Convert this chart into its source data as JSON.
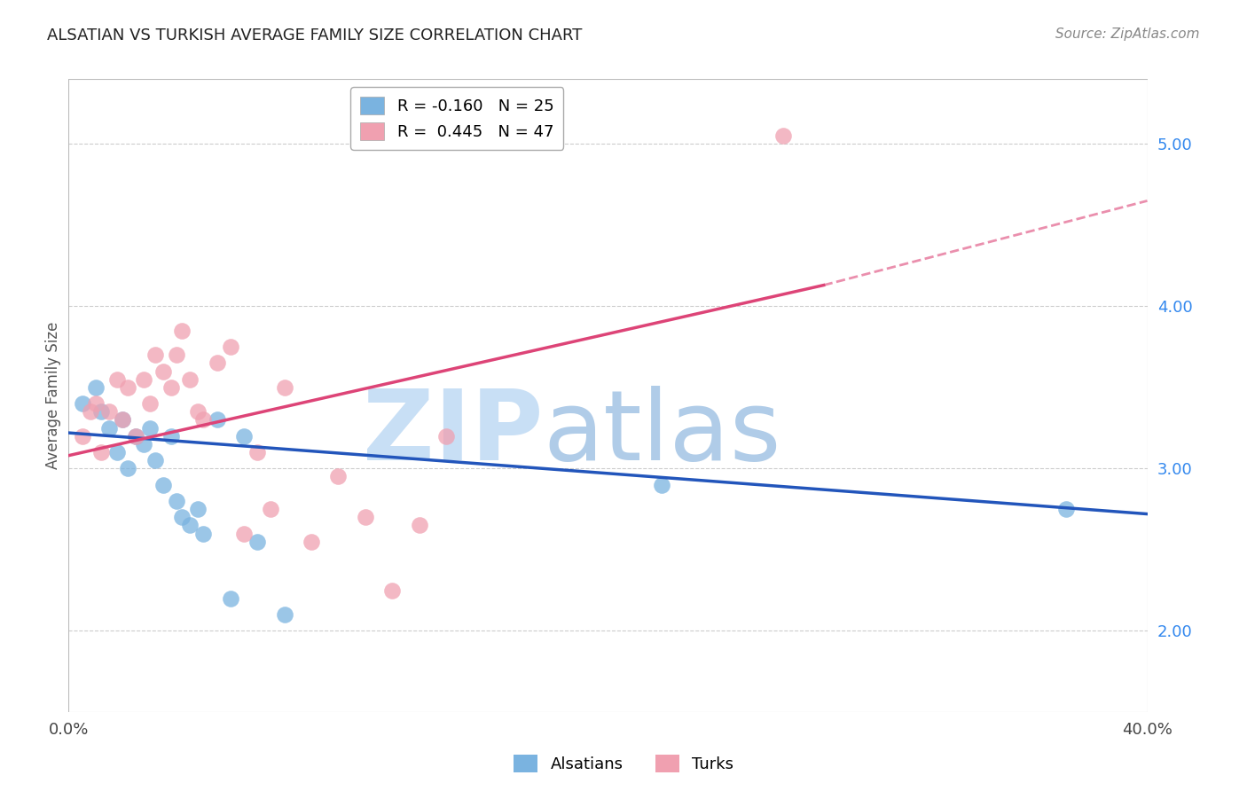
{
  "title": "ALSATIAN VS TURKISH AVERAGE FAMILY SIZE CORRELATION CHART",
  "source": "Source: ZipAtlas.com",
  "ylabel": "Average Family Size",
  "right_yticks": [
    2.0,
    3.0,
    4.0,
    5.0
  ],
  "alsatians_x": [
    0.5,
    1.0,
    1.2,
    1.5,
    1.8,
    2.0,
    2.2,
    2.5,
    2.8,
    3.0,
    3.2,
    3.5,
    3.8,
    4.0,
    4.2,
    4.5,
    4.8,
    5.0,
    5.5,
    6.0,
    6.5,
    7.0,
    8.0,
    22.0,
    37.0
  ],
  "alsatians_y": [
    3.4,
    3.5,
    3.35,
    3.25,
    3.1,
    3.3,
    3.0,
    3.2,
    3.15,
    3.25,
    3.05,
    2.9,
    3.2,
    2.8,
    2.7,
    2.65,
    2.75,
    2.6,
    3.3,
    2.2,
    3.2,
    2.55,
    2.1,
    2.9,
    2.75
  ],
  "turks_x": [
    0.5,
    0.8,
    1.0,
    1.2,
    1.5,
    1.8,
    2.0,
    2.2,
    2.5,
    2.8,
    3.0,
    3.2,
    3.5,
    3.8,
    4.0,
    4.2,
    4.5,
    4.8,
    5.0,
    5.5,
    6.0,
    6.5,
    7.0,
    7.5,
    8.0,
    9.0,
    10.0,
    11.0,
    12.0,
    13.0,
    14.0,
    26.5
  ],
  "turks_y": [
    3.2,
    3.35,
    3.4,
    3.1,
    3.35,
    3.55,
    3.3,
    3.5,
    3.2,
    3.55,
    3.4,
    3.7,
    3.6,
    3.5,
    3.7,
    3.85,
    3.55,
    3.35,
    3.3,
    3.65,
    3.75,
    2.6,
    3.1,
    2.75,
    3.5,
    2.55,
    2.95,
    2.7,
    2.25,
    2.65,
    3.2,
    5.05
  ],
  "turk_outlier_x": 26.5,
  "turk_outlier_y": 5.05,
  "alsatian_color": "#7ab3e0",
  "turk_color": "#f0a0b0",
  "alsatian_line_color": "#2255bb",
  "turk_line_color": "#dd4477",
  "background_color": "#ffffff",
  "grid_color": "#cccccc",
  "watermark_zip": "ZIP",
  "watermark_atlas": "atlas",
  "watermark_color_zip": "#c8dff5",
  "watermark_color_atlas": "#b0cce8",
  "xlim_pct": [
    0.0,
    40.0
  ],
  "ylim": [
    1.5,
    5.4
  ],
  "x_scale": 0.01,
  "turk_solid_end_pct": 28.0,
  "als_line_start_y": 3.22,
  "als_line_end_y": 2.72,
  "turk_line_start_y": 3.08,
  "turk_solid_end_y": 4.13,
  "turk_dash_end_y": 4.65
}
